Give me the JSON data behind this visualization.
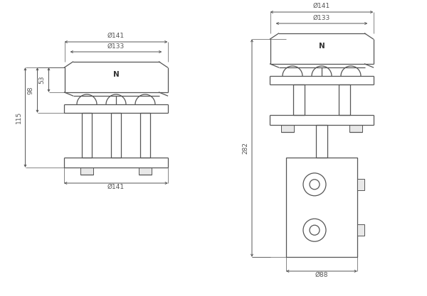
{
  "bg_color": "#ffffff",
  "line_color": "#555555",
  "dim_color": "#555555",
  "text_color": "#333333",
  "figsize": [
    6.0,
    4.17
  ],
  "dpi": 100,
  "left_view": {
    "label_top141": "Ø141",
    "label_top133": "Ø133",
    "label_bot141": "Ø141",
    "label_53": "53",
    "label_98": "98",
    "label_115": "115",
    "label_N": "N"
  },
  "right_view": {
    "label_top141": "Ø141",
    "label_top133": "Ø133",
    "label_bot88": "Ø88",
    "label_282": "282",
    "label_N": "N"
  }
}
